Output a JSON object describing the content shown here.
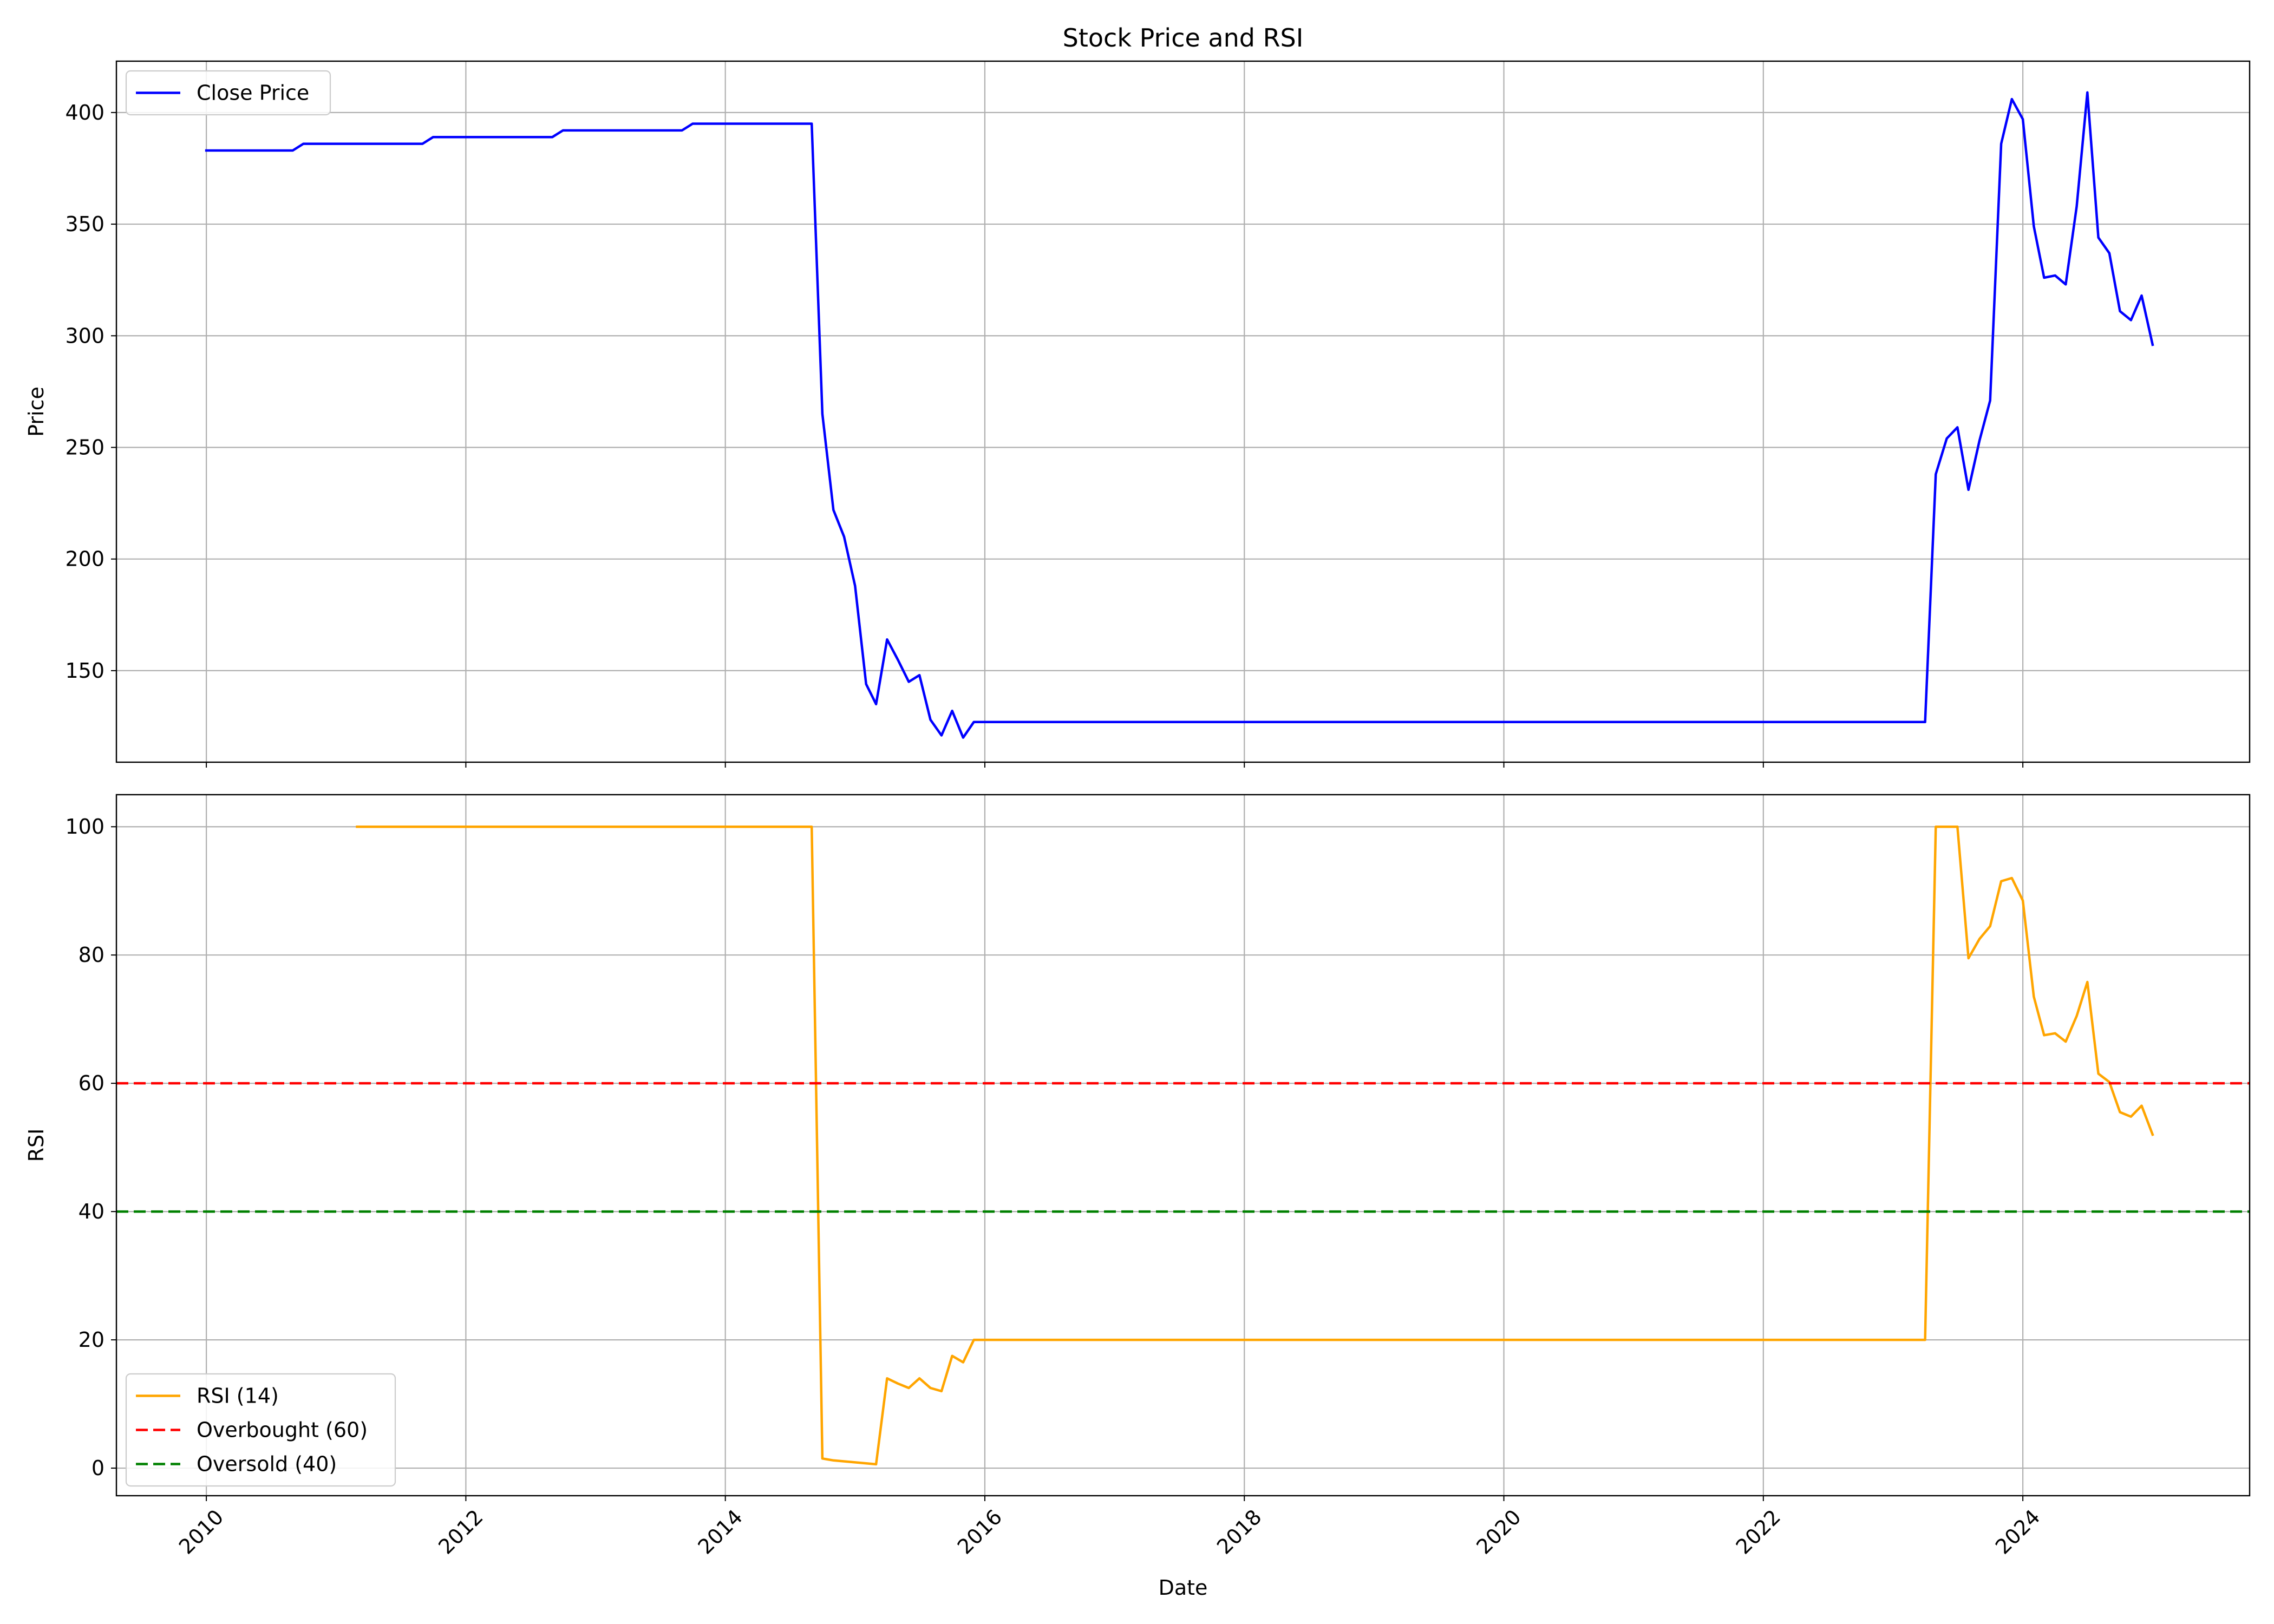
{
  "chart_data": {
    "type": "line",
    "title": "Stock Price and RSI",
    "xlabel": "Date",
    "x_ticks": [
      "2010",
      "2012",
      "2014",
      "2016",
      "2018",
      "2020",
      "2022",
      "2024"
    ],
    "xlim": [
      "2009-04-23",
      "2025-10-01"
    ],
    "grid": true,
    "panels": [
      {
        "id": "price",
        "ylabel": "Price",
        "ylim": [
          109,
          423
        ],
        "y_ticks": [
          150,
          200,
          250,
          300,
          350,
          400
        ],
        "legend_position": "upper-left",
        "series": [
          {
            "name": "Close Price",
            "color": "#0000ff",
            "style": "solid",
            "points": [
              [
                "2010-01-01",
                383
              ],
              [
                "2010-09-01",
                383
              ],
              [
                "2010-10-01",
                386
              ],
              [
                "2011-09-01",
                386
              ],
              [
                "2011-10-01",
                389
              ],
              [
                "2012-09-01",
                389
              ],
              [
                "2012-10-01",
                392
              ],
              [
                "2013-09-01",
                392
              ],
              [
                "2013-10-01",
                395
              ],
              [
                "2014-09-01",
                395
              ],
              [
                "2014-10-01",
                265
              ],
              [
                "2014-11-01",
                222
              ],
              [
                "2014-12-01",
                210
              ],
              [
                "2015-01-01",
                188
              ],
              [
                "2015-02-01",
                144
              ],
              [
                "2015-03-01",
                135
              ],
              [
                "2015-04-01",
                164
              ],
              [
                "2015-05-01",
                155
              ],
              [
                "2015-06-01",
                145
              ],
              [
                "2015-07-01",
                148
              ],
              [
                "2015-08-01",
                128
              ],
              [
                "2015-09-01",
                121
              ],
              [
                "2015-10-01",
                132
              ],
              [
                "2015-11-01",
                120
              ],
              [
                "2015-12-01",
                127
              ],
              [
                "2023-04-01",
                127
              ],
              [
                "2023-05-01",
                238
              ],
              [
                "2023-06-01",
                254
              ],
              [
                "2023-07-01",
                259
              ],
              [
                "2023-08-01",
                231
              ],
              [
                "2023-09-01",
                253
              ],
              [
                "2023-10-01",
                271
              ],
              [
                "2023-11-01",
                386
              ],
              [
                "2023-12-01",
                406
              ],
              [
                "2024-01-01",
                397
              ],
              [
                "2024-02-01",
                349
              ],
              [
                "2024-03-01",
                326
              ],
              [
                "2024-04-01",
                327
              ],
              [
                "2024-05-01",
                323
              ],
              [
                "2024-06-01",
                358
              ],
              [
                "2024-07-01",
                409
              ],
              [
                "2024-08-01",
                344
              ],
              [
                "2024-09-01",
                337
              ],
              [
                "2024-10-01",
                311
              ],
              [
                "2024-11-01",
                307
              ],
              [
                "2024-12-01",
                318
              ],
              [
                "2025-01-01",
                296
              ]
            ]
          }
        ]
      },
      {
        "id": "rsi",
        "ylabel": "RSI",
        "ylim": [
          -4.3,
          105
        ],
        "y_ticks": [
          0,
          20,
          40,
          60,
          80,
          100
        ],
        "legend_position": "lower-left",
        "series": [
          {
            "name": "RSI (14)",
            "color": "#ffa500",
            "style": "solid",
            "points": [
              [
                "2011-03-01",
                100
              ],
              [
                "2014-09-01",
                100
              ],
              [
                "2014-10-01",
                1.5
              ],
              [
                "2014-11-01",
                1.2
              ],
              [
                "2015-03-01",
                0.6
              ],
              [
                "2015-04-01",
                14
              ],
              [
                "2015-05-01",
                13.2
              ],
              [
                "2015-06-01",
                12.5
              ],
              [
                "2015-07-01",
                14
              ],
              [
                "2015-08-01",
                12.5
              ],
              [
                "2015-09-01",
                12
              ],
              [
                "2015-10-01",
                17.5
              ],
              [
                "2015-11-01",
                16.5
              ],
              [
                "2015-12-01",
                20
              ],
              [
                "2023-04-01",
                20
              ],
              [
                "2023-05-01",
                100
              ],
              [
                "2023-07-01",
                100
              ],
              [
                "2023-08-01",
                79.5
              ],
              [
                "2023-09-01",
                82.5
              ],
              [
                "2023-10-01",
                84.5
              ],
              [
                "2023-11-01",
                91.5
              ],
              [
                "2023-12-01",
                92
              ],
              [
                "2024-01-01",
                88.5
              ],
              [
                "2024-02-01",
                73.5
              ],
              [
                "2024-03-01",
                67.5
              ],
              [
                "2024-04-01",
                67.8
              ],
              [
                "2024-05-01",
                66.5
              ],
              [
                "2024-06-01",
                70.5
              ],
              [
                "2024-07-01",
                75.8
              ],
              [
                "2024-08-01",
                61.5
              ],
              [
                "2024-09-01",
                60.2
              ],
              [
                "2024-10-01",
                55.5
              ],
              [
                "2024-11-01",
                54.8
              ],
              [
                "2024-12-01",
                56.5
              ],
              [
                "2025-01-01",
                52
              ]
            ]
          },
          {
            "name": "Overbought (60)",
            "color": "#ff0000",
            "style": "dashed",
            "hline": 60
          },
          {
            "name": "Oversold (40)",
            "color": "#008000",
            "style": "dashed",
            "hline": 40
          }
        ]
      }
    ]
  }
}
